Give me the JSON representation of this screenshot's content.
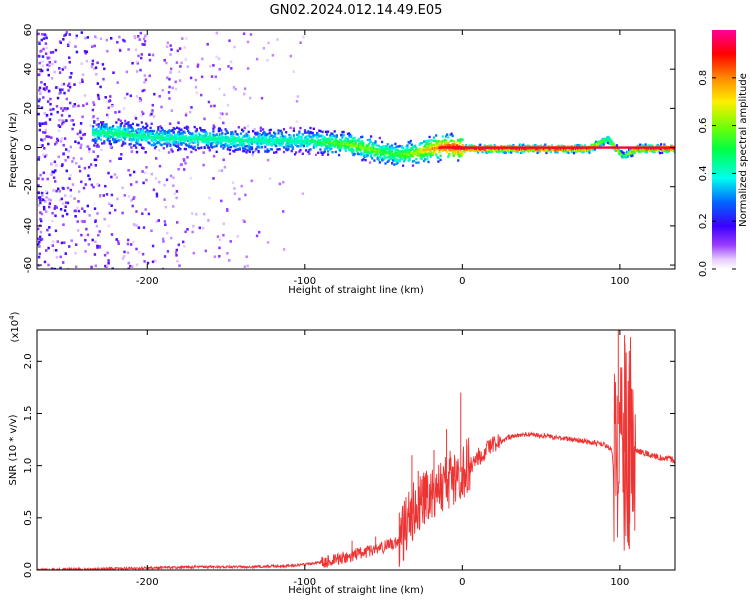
{
  "title": "GN02.2024.012.14.49.E05",
  "chart_data": [
    {
      "type": "heatmap",
      "xlabel": "Height of straight line (km)",
      "ylabel": "Frequency (Hz)",
      "xlim": [
        -270,
        135
      ],
      "ylim": [
        -62,
        60
      ],
      "x_ticks": [
        -200,
        -100,
        0,
        100
      ],
      "y_ticks": [
        -60,
        -40,
        -20,
        0,
        20,
        40,
        60
      ],
      "colorbar": {
        "label": "Normalized spectral amplitude",
        "range": [
          0,
          1
        ],
        "ticks": [
          0.0,
          0.2,
          0.4,
          0.6,
          0.8
        ],
        "colormap": "hsv-rainbow (white-violet-blue-cyan-green-yellow-red-magenta)"
      },
      "ridge": {
        "x": [
          -235,
          -220,
          -200,
          -180,
          -160,
          -140,
          -120,
          -100,
          -85,
          -70,
          -60,
          -50,
          -40,
          -30,
          -20,
          -10,
          0,
          20,
          50,
          80,
          92,
          97,
          102,
          110,
          135
        ],
        "freq_hz": [
          8,
          8,
          6,
          5,
          5,
          4,
          4,
          4,
          3,
          2,
          0,
          -2,
          -3,
          -2,
          0,
          1,
          0,
          0,
          0,
          0,
          5,
          0,
          -4,
          0,
          0
        ],
        "amplitude": [
          0.45,
          0.5,
          0.45,
          0.45,
          0.45,
          0.45,
          0.45,
          0.45,
          0.55,
          0.6,
          0.6,
          0.55,
          0.55,
          0.65,
          0.8,
          0.9,
          0.95,
          0.95,
          0.95,
          0.95,
          0.5,
          0.8,
          0.5,
          0.95,
          0.95
        ]
      },
      "noise_region_x": [
        -270,
        -100
      ]
    },
    {
      "type": "line",
      "xlabel": "Height of straight line (km)",
      "ylabel": "SNR (10 * v/v)",
      "y_multiplier": "(x10^4)",
      "xlim": [
        -270,
        135
      ],
      "ylim": [
        0,
        2.3
      ],
      "x_ticks": [
        -200,
        -100,
        0,
        100
      ],
      "y_ticks": [
        0.0,
        0.5,
        1.0,
        1.5,
        2.0
      ],
      "series": [
        {
          "color": "#ee3333",
          "x": [
            -270,
            -230,
            -200,
            -165,
            -140,
            -110,
            -90,
            -80,
            -70,
            -60,
            -50,
            -40,
            -35,
            -30,
            -25,
            -20,
            -15,
            -10,
            -5,
            0,
            5,
            10,
            20,
            30,
            40,
            50,
            60,
            70,
            80,
            90,
            95,
            98,
            100,
            102,
            104,
            106,
            108,
            110,
            115,
            120,
            125,
            135
          ],
          "y": [
            0.0,
            0.01,
            0.02,
            0.03,
            0.03,
            0.04,
            0.07,
            0.1,
            0.14,
            0.18,
            0.22,
            0.28,
            0.45,
            0.6,
            0.7,
            0.75,
            0.8,
            0.85,
            0.9,
            0.95,
            1.0,
            1.08,
            1.2,
            1.27,
            1.3,
            1.29,
            1.27,
            1.25,
            1.23,
            1.2,
            1.15,
            0.6,
            2.2,
            0.25,
            2.0,
            0.2,
            1.6,
            1.15,
            1.12,
            1.1,
            1.08,
            1.05
          ],
          "spikes": [
            {
              "x": -70,
              "y": 0.28
            },
            {
              "x": -55,
              "y": 0.32
            },
            {
              "x": -40,
              "y": 0.55
            },
            {
              "x": -32,
              "y": 1.1
            },
            {
              "x": -28,
              "y": 0.95
            },
            {
              "x": -25,
              "y": 0.9
            },
            {
              "x": -18,
              "y": 1.15
            },
            {
              "x": -10,
              "y": 1.35
            },
            {
              "x": -5,
              "y": 1.05
            },
            {
              "x": -1,
              "y": 1.7
            },
            {
              "x": 3,
              "y": 1.2
            },
            {
              "x": 99,
              "y": 2.3
            },
            {
              "x": 103,
              "y": 2.25
            },
            {
              "x": 106,
              "y": 2.1
            }
          ]
        }
      ]
    }
  ]
}
